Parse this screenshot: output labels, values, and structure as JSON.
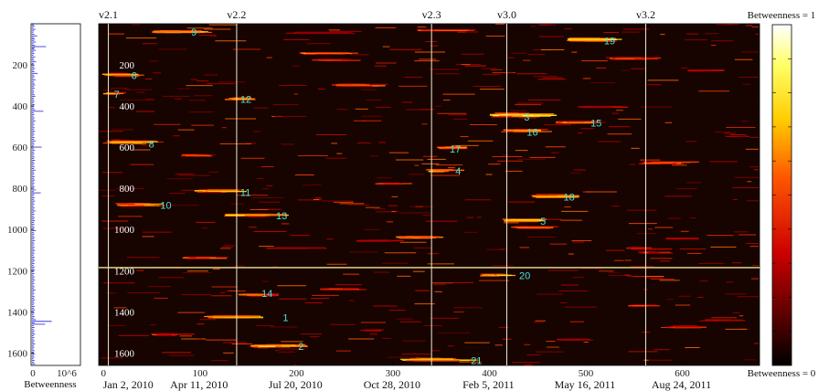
{
  "chart_data": [
    {
      "type": "line",
      "orientation": "horizontal bars by row",
      "xlabel": "Betweenness",
      "x_tick_labels": [
        "0",
        "10^6"
      ],
      "y_tick_labels": [
        "200",
        "400",
        "600",
        "800",
        "1000",
        "1200",
        "1400",
        "1600"
      ],
      "ylim": [
        1,
        1660
      ],
      "xlim": [
        0,
        1000000
      ],
      "series_color": "#3b3bdc",
      "bars": [
        [
          5,
          40
        ],
        [
          12,
          60
        ],
        [
          20,
          35
        ],
        [
          28,
          80
        ],
        [
          36,
          45
        ],
        [
          44,
          30
        ],
        [
          52,
          55
        ],
        [
          60,
          120
        ],
        [
          68,
          40
        ],
        [
          75,
          65
        ],
        [
          82,
          50
        ],
        [
          90,
          90
        ],
        [
          98,
          35
        ],
        [
          106,
          70
        ],
        [
          112,
          320
        ],
        [
          118,
          60
        ],
        [
          124,
          45
        ],
        [
          130,
          85
        ],
        [
          138,
          40
        ],
        [
          146,
          55
        ],
        [
          154,
          30
        ],
        [
          162,
          75
        ],
        [
          170,
          40
        ],
        [
          178,
          50
        ],
        [
          186,
          95
        ],
        [
          194,
          35
        ],
        [
          202,
          60
        ],
        [
          210,
          45
        ],
        [
          218,
          70
        ],
        [
          226,
          40
        ],
        [
          234,
          55
        ],
        [
          242,
          130
        ],
        [
          250,
          45
        ],
        [
          258,
          60
        ],
        [
          266,
          35
        ],
        [
          274,
          80
        ],
        [
          282,
          40
        ],
        [
          290,
          55
        ],
        [
          298,
          70
        ],
        [
          306,
          45
        ],
        [
          314,
          60
        ],
        [
          322,
          35
        ],
        [
          330,
          50
        ],
        [
          338,
          40
        ],
        [
          346,
          60
        ],
        [
          354,
          75
        ],
        [
          362,
          45
        ],
        [
          370,
          40
        ],
        [
          378,
          55
        ],
        [
          386,
          35
        ],
        [
          394,
          60
        ],
        [
          402,
          50
        ],
        [
          410,
          45
        ],
        [
          418,
          70
        ],
        [
          426,
          260
        ],
        [
          434,
          40
        ],
        [
          442,
          55
        ],
        [
          450,
          35
        ],
        [
          458,
          60
        ],
        [
          466,
          45
        ],
        [
          474,
          80
        ],
        [
          482,
          40
        ],
        [
          490,
          55
        ],
        [
          498,
          35
        ],
        [
          506,
          60
        ],
        [
          514,
          45
        ],
        [
          522,
          70
        ],
        [
          530,
          40
        ],
        [
          538,
          55
        ],
        [
          546,
          35
        ],
        [
          554,
          60
        ],
        [
          562,
          45
        ],
        [
          570,
          85
        ],
        [
          578,
          40
        ],
        [
          586,
          55
        ],
        [
          594,
          35
        ],
        [
          600,
          220
        ],
        [
          608,
          45
        ],
        [
          616,
          70
        ],
        [
          624,
          40
        ],
        [
          632,
          55
        ],
        [
          640,
          35
        ],
        [
          648,
          60
        ],
        [
          656,
          45
        ],
        [
          664,
          70
        ],
        [
          672,
          40
        ],
        [
          680,
          55
        ],
        [
          688,
          35
        ],
        [
          696,
          60
        ],
        [
          704,
          45
        ],
        [
          712,
          80
        ],
        [
          720,
          40
        ],
        [
          728,
          55
        ],
        [
          736,
          35
        ],
        [
          744,
          60
        ],
        [
          752,
          45
        ],
        [
          760,
          70
        ],
        [
          768,
          40
        ],
        [
          776,
          55
        ],
        [
          784,
          35
        ],
        [
          792,
          60
        ],
        [
          800,
          45
        ],
        [
          808,
          90
        ],
        [
          816,
          40
        ],
        [
          822,
          200
        ],
        [
          830,
          55
        ],
        [
          838,
          35
        ],
        [
          846,
          60
        ],
        [
          854,
          45
        ],
        [
          862,
          70
        ],
        [
          870,
          40
        ],
        [
          878,
          55
        ],
        [
          886,
          35
        ],
        [
          894,
          60
        ],
        [
          902,
          45
        ],
        [
          910,
          80
        ],
        [
          918,
          40
        ],
        [
          926,
          55
        ],
        [
          934,
          35
        ],
        [
          942,
          60
        ],
        [
          950,
          45
        ],
        [
          958,
          70
        ],
        [
          966,
          40
        ],
        [
          974,
          55
        ],
        [
          982,
          35
        ],
        [
          990,
          60
        ],
        [
          998,
          45
        ],
        [
          1006,
          90
        ],
        [
          1014,
          40
        ],
        [
          1022,
          55
        ],
        [
          1030,
          35
        ],
        [
          1038,
          60
        ],
        [
          1046,
          45
        ],
        [
          1054,
          70
        ],
        [
          1062,
          40
        ],
        [
          1070,
          55
        ],
        [
          1078,
          35
        ],
        [
          1086,
          60
        ],
        [
          1094,
          45
        ],
        [
          1102,
          70
        ],
        [
          1110,
          40
        ],
        [
          1118,
          55
        ],
        [
          1126,
          35
        ],
        [
          1134,
          60
        ],
        [
          1142,
          45
        ],
        [
          1150,
          70
        ],
        [
          1158,
          40
        ],
        [
          1166,
          55
        ],
        [
          1174,
          35
        ],
        [
          1182,
          60
        ],
        [
          1190,
          45
        ],
        [
          1198,
          70
        ],
        [
          1206,
          40
        ],
        [
          1214,
          55
        ],
        [
          1222,
          35
        ],
        [
          1230,
          60
        ],
        [
          1238,
          45
        ],
        [
          1246,
          70
        ],
        [
          1254,
          40
        ],
        [
          1262,
          55
        ],
        [
          1270,
          35
        ],
        [
          1278,
          60
        ],
        [
          1286,
          45
        ],
        [
          1294,
          80
        ],
        [
          1302,
          40
        ],
        [
          1310,
          55
        ],
        [
          1318,
          35
        ],
        [
          1326,
          60
        ],
        [
          1334,
          45
        ],
        [
          1342,
          70
        ],
        [
          1350,
          40
        ],
        [
          1358,
          55
        ],
        [
          1366,
          35
        ],
        [
          1374,
          60
        ],
        [
          1382,
          45
        ],
        [
          1390,
          70
        ],
        [
          1398,
          40
        ],
        [
          1406,
          55
        ],
        [
          1414,
          35
        ],
        [
          1422,
          60
        ],
        [
          1430,
          45
        ],
        [
          1438,
          90
        ],
        [
          1446,
          450
        ],
        [
          1454,
          60
        ],
        [
          1460,
          300
        ],
        [
          1468,
          40
        ],
        [
          1476,
          55
        ],
        [
          1484,
          35
        ],
        [
          1492,
          60
        ],
        [
          1500,
          45
        ],
        [
          1508,
          70
        ],
        [
          1516,
          40
        ],
        [
          1524,
          55
        ],
        [
          1532,
          35
        ],
        [
          1540,
          60
        ],
        [
          1548,
          45
        ],
        [
          1556,
          70
        ],
        [
          1564,
          40
        ],
        [
          1572,
          55
        ],
        [
          1580,
          35
        ],
        [
          1588,
          60
        ],
        [
          1596,
          45
        ],
        [
          1604,
          70
        ],
        [
          1612,
          40
        ],
        [
          1620,
          55
        ],
        [
          1628,
          35
        ],
        [
          1636,
          60
        ],
        [
          1644,
          45
        ],
        [
          1652,
          70
        ]
      ]
    },
    {
      "type": "heatmap",
      "xlim": [
        -5,
        680
      ],
      "ylim": [
        1,
        1660
      ],
      "x_ticks": [
        0,
        100,
        200,
        300,
        400,
        500,
        600
      ],
      "x_tick_labels": [
        "0",
        "100",
        "200",
        "300",
        "400",
        "500",
        "600"
      ],
      "y_ticks": [
        200,
        400,
        600,
        800,
        1000,
        1200,
        1400,
        1600
      ],
      "y_tick_labels": [
        "200",
        "400",
        "600",
        "800",
        "1000",
        "1200",
        "1400",
        "1600"
      ],
      "date_labels": [
        {
          "x": 0,
          "label": "Jan 2, 2010"
        },
        {
          "x": 99,
          "label": "Apr 11, 2010"
        },
        {
          "x": 199,
          "label": "Jul 20, 2010"
        },
        {
          "x": 299,
          "label": "Oct 28, 2010"
        },
        {
          "x": 399,
          "label": "Feb 5, 2011"
        },
        {
          "x": 499,
          "label": "May 16, 2011"
        },
        {
          "x": 599,
          "label": "Aug 24, 2011"
        }
      ],
      "versions": [
        {
          "name": "v2.1",
          "x": 5
        },
        {
          "name": "v2.2",
          "x": 138
        },
        {
          "name": "v2.3",
          "x": 340
        },
        {
          "name": "v3.0",
          "x": 418
        },
        {
          "name": "v3.2",
          "x": 562
        }
      ],
      "horizontal_line": {
        "y": 1185
      },
      "colorbar": {
        "top_label": "Betweenness = 1",
        "bottom_label": "Betweenness = 0",
        "min": 0,
        "max": 1
      },
      "annotations": [
        {
          "label": "1",
          "x": 182,
          "y": 1428
        },
        {
          "label": "2",
          "x": 198,
          "y": 1567
        },
        {
          "label": "3",
          "x": 432,
          "y": 453
        },
        {
          "label": "4",
          "x": 361,
          "y": 716
        },
        {
          "label": "5",
          "x": 449,
          "y": 960
        },
        {
          "label": "6",
          "x": 25,
          "y": 251
        },
        {
          "label": "7",
          "x": 7,
          "y": 342
        },
        {
          "label": "8",
          "x": 43,
          "y": 584
        },
        {
          "label": "9",
          "x": 87,
          "y": 40
        },
        {
          "label": "10",
          "x": 55,
          "y": 882
        },
        {
          "label": "11",
          "x": 138,
          "y": 820
        },
        {
          "label": "12",
          "x": 138,
          "y": 367
        },
        {
          "label": "13",
          "x": 175,
          "y": 933
        },
        {
          "label": "14",
          "x": 160,
          "y": 1310
        },
        {
          "label": "15",
          "x": 501,
          "y": 483
        },
        {
          "label": "16",
          "x": 435,
          "y": 526
        },
        {
          "label": "17",
          "x": 355,
          "y": 608
        },
        {
          "label": "18",
          "x": 473,
          "y": 842
        },
        {
          "label": "19",
          "x": 515,
          "y": 84
        },
        {
          "label": "20",
          "x": 427,
          "y": 1223
        },
        {
          "label": "21",
          "x": 377,
          "y": 1635
        }
      ],
      "spots": [
        [
          60,
          40,
          50,
          14,
          0.9
        ],
        [
          335,
          33,
          60,
          6,
          0.6
        ],
        [
          490,
          78,
          55,
          16,
          1.0
        ],
        [
          530,
          170,
          50,
          10,
          0.7
        ],
        [
          212,
          145,
          45,
          8,
          0.8
        ],
        [
          222,
          178,
          40,
          6,
          0.6
        ],
        [
          245,
          300,
          45,
          10,
          0.85
        ],
        [
          5,
          248,
          35,
          12,
          1.0
        ],
        [
          3,
          340,
          20,
          10,
          0.8
        ],
        [
          130,
          365,
          25,
          10,
          0.9
        ],
        [
          410,
          445,
          60,
          20,
          1.0
        ],
        [
          476,
          480,
          40,
          10,
          0.9
        ],
        [
          420,
          520,
          40,
          12,
          0.95
        ],
        [
          350,
          603,
          25,
          10,
          0.8
        ],
        [
          5,
          576,
          50,
          14,
          1.0
        ],
        [
          85,
          640,
          30,
          8,
          0.7
        ],
        [
          340,
          716,
          30,
          14,
          0.95
        ],
        [
          560,
          677,
          50,
          10,
          0.85
        ],
        [
          287,
          777,
          30,
          6,
          0.6
        ],
        [
          452,
          840,
          45,
          12,
          0.9
        ],
        [
          103,
          813,
          45,
          14,
          0.95
        ],
        [
          20,
          880,
          40,
          12,
          0.9
        ],
        [
          135,
          930,
          55,
          10,
          0.95
        ],
        [
          420,
          955,
          40,
          14,
          1.0
        ],
        [
          430,
          990,
          40,
          10,
          0.7
        ],
        [
          310,
          1038,
          40,
          12,
          0.85
        ],
        [
          550,
          1092,
          40,
          8,
          0.7
        ],
        [
          88,
          1138,
          45,
          8,
          0.7
        ],
        [
          395,
          1222,
          30,
          10,
          0.9
        ],
        [
          232,
          1290,
          45,
          8,
          0.6
        ],
        [
          146,
          1318,
          35,
          10,
          0.85
        ],
        [
          115,
          1425,
          55,
          14,
          0.95
        ],
        [
          160,
          1566,
          45,
          14,
          1.0
        ],
        [
          320,
          1632,
          65,
          16,
          0.95
        ],
        [
          55,
          1510,
          35,
          8,
          0.7
        ],
        [
          270,
          1490,
          20,
          6,
          0.5
        ],
        [
          475,
          1535,
          35,
          6,
          0.5
        ],
        [
          590,
          1475,
          40,
          6,
          0.6
        ],
        [
          545,
          1370,
          30,
          6,
          0.6
        ],
        [
          588,
          1045,
          30,
          6,
          0.5
        ],
        [
          560,
          1112,
          30,
          6,
          0.55
        ],
        [
          628,
          1440,
          45,
          6,
          0.45
        ],
        [
          610,
          228,
          30,
          6,
          0.5
        ],
        [
          500,
          405,
          45,
          6,
          0.45
        ],
        [
          200,
          45,
          60,
          6,
          0.4
        ],
        [
          270,
          1055,
          45,
          6,
          0.45
        ],
        [
          180,
          1090,
          60,
          6,
          0.45
        ]
      ]
    }
  ]
}
